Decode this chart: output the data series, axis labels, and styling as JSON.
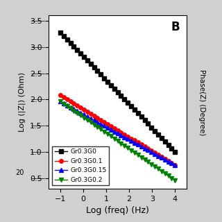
{
  "title_label": "B",
  "xlabel": "Log (freq) (Hz)",
  "ylabel": "Log (|Z|) (Ohm)",
  "right_ylabel": "Phase(Z) (Degree)",
  "xlim": [
    -1.5,
    4.5
  ],
  "ylim": [
    0.3,
    3.6
  ],
  "xticks": [
    -1,
    0,
    1,
    2,
    3,
    4
  ],
  "yticks": [
    0.5,
    1.0,
    1.5,
    2.0,
    2.5,
    3.0,
    3.5
  ],
  "series": [
    {
      "label": "Gr0.3G0",
      "color": "black",
      "marker": "s",
      "x_start": -1.0,
      "x_end": 4.0,
      "y_start": 3.28,
      "y_end": 1.0
    },
    {
      "label": "Gr0.3G0.1",
      "color": "red",
      "marker": "o",
      "x_start": -1.0,
      "x_end": 4.0,
      "y_start": 2.08,
      "y_end": 0.75
    },
    {
      "label": "Gr0.3G0.15",
      "color": "blue",
      "marker": "^",
      "x_start": -1.0,
      "x_end": 4.0,
      "y_start": 1.96,
      "y_end": 0.75
    },
    {
      "label": "Gr0.3G0.2",
      "color": "green",
      "marker": "v",
      "x_start": -1.0,
      "x_end": 4.0,
      "y_start": 1.96,
      "y_end": 0.46
    }
  ],
  "n_points": 35,
  "legend_loc": "lower left",
  "background_color": "white",
  "figure_bg": "#d0d0d0"
}
